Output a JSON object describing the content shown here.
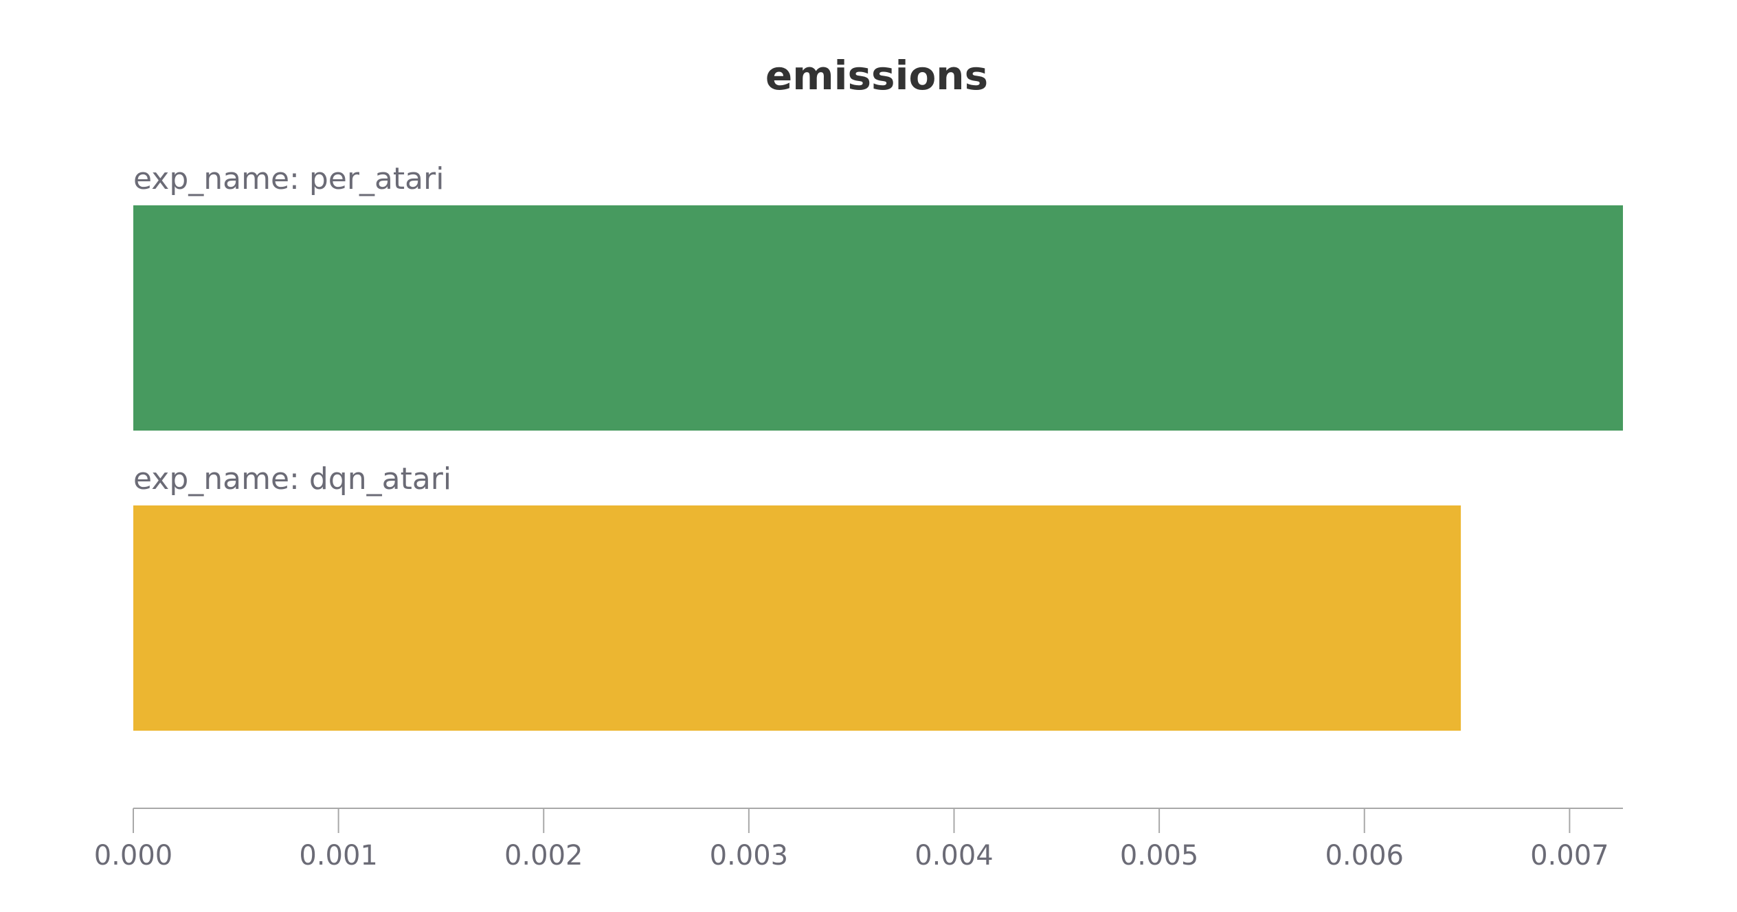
{
  "chart_data": {
    "type": "bar",
    "orientation": "horizontal",
    "title": "emissions",
    "xlabel": "",
    "ylabel": "",
    "xlim": [
      0,
      0.00726
    ],
    "ticks": [
      "0.000",
      "0.001",
      "0.002",
      "0.003",
      "0.004",
      "0.005",
      "0.006",
      "0.007"
    ],
    "tick_values": [
      0,
      0.001,
      0.002,
      0.003,
      0.004,
      0.005,
      0.006,
      0.007
    ],
    "grid": false,
    "categories": [
      "exp_name: per_atari",
      "exp_name: dqn_atari"
    ],
    "values": [
      0.00726,
      0.00647
    ],
    "colors": [
      "#479a5f",
      "#ecb631"
    ]
  }
}
